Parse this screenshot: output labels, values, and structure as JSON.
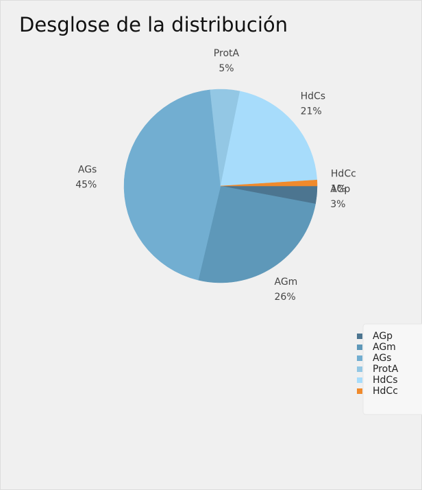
{
  "chart_data": {
    "type": "pie",
    "title": "Desglose de la distribución",
    "categories": [
      "AGp",
      "AGm",
      "AGs",
      "ProtA",
      "HdCs",
      "HdCc"
    ],
    "values": [
      3,
      26,
      45,
      5,
      21,
      1
    ],
    "value_labels": [
      "3%",
      "26%",
      "45%",
      "5%",
      "21%",
      "1%"
    ],
    "colors": [
      "#4c7590",
      "#5e98b9",
      "#72aed1",
      "#93c7e4",
      "#a7dcfb",
      "#f08a2c"
    ],
    "legend": "right"
  }
}
